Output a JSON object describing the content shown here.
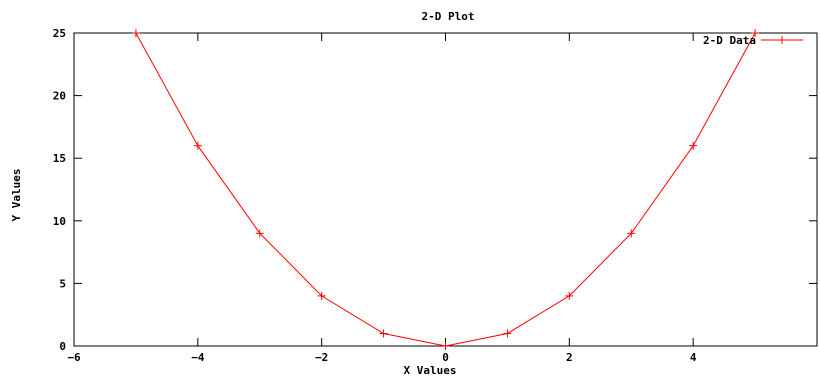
{
  "chart_data": {
    "type": "line",
    "title": "2-D Plot",
    "xlabel": "X Values",
    "ylabel": "Y Values",
    "xlim": [
      -6,
      6
    ],
    "ylim": [
      0,
      25
    ],
    "x_ticks": [
      -6,
      -4,
      -2,
      0,
      2,
      4
    ],
    "y_ticks": [
      0,
      5,
      10,
      15,
      20,
      25
    ],
    "grid": false,
    "legend_position": "top-right",
    "series": [
      {
        "name": "2-D Data",
        "color": "#ff0000",
        "marker": "plus",
        "x": [
          -5,
          -4,
          -3,
          -2,
          -1,
          0,
          1,
          2,
          3,
          4,
          5
        ],
        "y": [
          25,
          16,
          9,
          4,
          1,
          0,
          1,
          4,
          9,
          16,
          25
        ]
      }
    ]
  }
}
